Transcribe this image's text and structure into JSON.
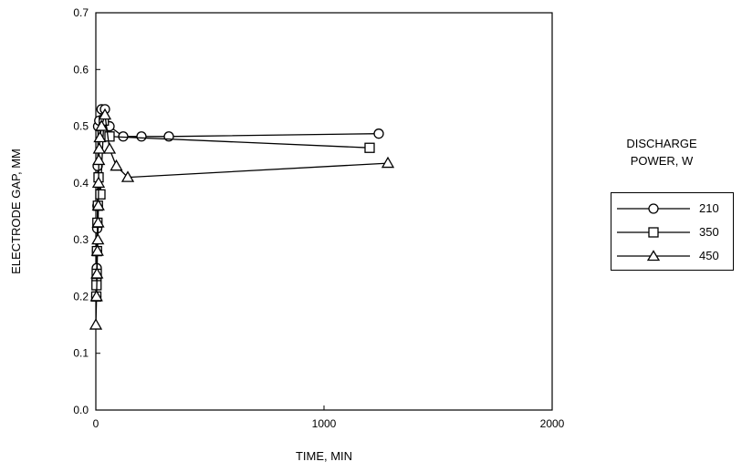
{
  "chart_data": {
    "type": "scatter",
    "title": "",
    "xlabel": "TIME, MIN",
    "ylabel": "ELECTRODE GAP, MM",
    "xlim": [
      0,
      2000
    ],
    "ylim": [
      0.0,
      0.7
    ],
    "xticks": [
      "0",
      "1000",
      "2000"
    ],
    "yticks": [
      "0.0",
      "0.1",
      "0.2",
      "0.3",
      "0.4",
      "0.5",
      "0.6",
      "0.7"
    ],
    "grid": false,
    "legend_title": [
      "DISCHARGE",
      "POWER, W"
    ],
    "legend_position": "right",
    "series": [
      {
        "name": "210",
        "marker": "circle",
        "points": [
          [
            2,
            0.2
          ],
          [
            3,
            0.23
          ],
          [
            4,
            0.25
          ],
          [
            5,
            0.28
          ],
          [
            6,
            0.32
          ],
          [
            7,
            0.36
          ],
          [
            8,
            0.43
          ],
          [
            10,
            0.5
          ],
          [
            15,
            0.51
          ],
          [
            25,
            0.53
          ],
          [
            40,
            0.53
          ],
          [
            60,
            0.5
          ],
          [
            120,
            0.482
          ],
          [
            200,
            0.482
          ],
          [
            320,
            0.482
          ],
          [
            1240,
            0.487
          ]
        ]
      },
      {
        "name": "350",
        "marker": "square",
        "points": [
          [
            2,
            0.2
          ],
          [
            3,
            0.22
          ],
          [
            4,
            0.24
          ],
          [
            5,
            0.28
          ],
          [
            7,
            0.33
          ],
          [
            9,
            0.36
          ],
          [
            12,
            0.41
          ],
          [
            20,
            0.38
          ],
          [
            35,
            0.51
          ],
          [
            60,
            0.482
          ],
          [
            1200,
            0.462
          ]
        ]
      },
      {
        "name": "450",
        "marker": "triangle",
        "points": [
          [
            0,
            0.15
          ],
          [
            3,
            0.2
          ],
          [
            5,
            0.24
          ],
          [
            7,
            0.28
          ],
          [
            9,
            0.3
          ],
          [
            10,
            0.33
          ],
          [
            11,
            0.36
          ],
          [
            12,
            0.4
          ],
          [
            13,
            0.44
          ],
          [
            15,
            0.46
          ],
          [
            18,
            0.48
          ],
          [
            25,
            0.5
          ],
          [
            40,
            0.52
          ],
          [
            60,
            0.46
          ],
          [
            90,
            0.43
          ],
          [
            140,
            0.41
          ],
          [
            1280,
            0.435
          ]
        ]
      }
    ]
  }
}
